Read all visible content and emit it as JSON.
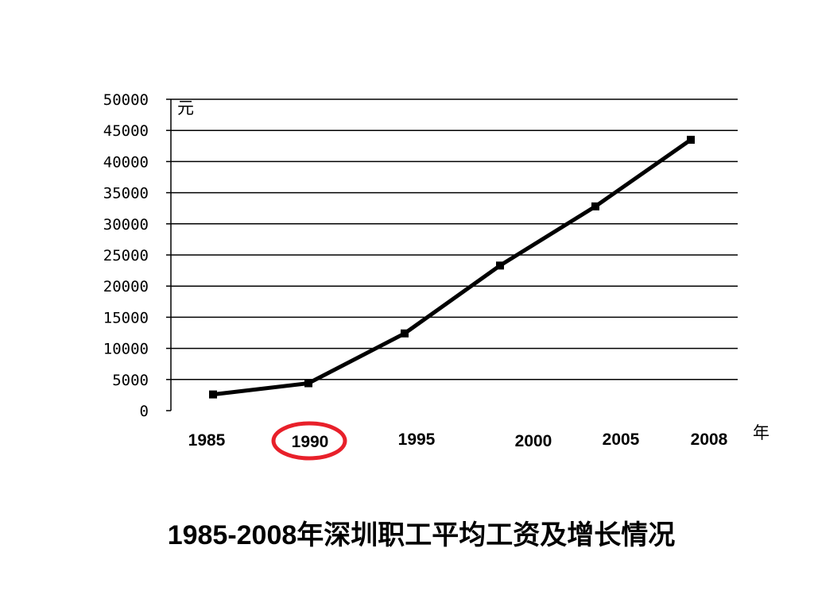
{
  "chart_data": {
    "type": "line",
    "title": "1985-2008年深圳职工平均工资及增长情况",
    "ylabel": "元",
    "xlabel": "年",
    "x": [
      "1985",
      "1990",
      "1995",
      "2000",
      "2005",
      "2008"
    ],
    "series": [
      {
        "values": [
          2600,
          4400,
          12400,
          23300,
          32800,
          43500
        ]
      }
    ],
    "ylim": [
      0,
      50000
    ],
    "yticks": [
      0,
      5000,
      10000,
      15000,
      20000,
      25000,
      30000,
      35000,
      40000,
      45000,
      50000
    ],
    "grid": true,
    "legend": "none",
    "line_color": "#000000",
    "marker": "square",
    "highlight": {
      "label": "1990",
      "shape": "ellipse",
      "color": "#e8202a"
    }
  }
}
